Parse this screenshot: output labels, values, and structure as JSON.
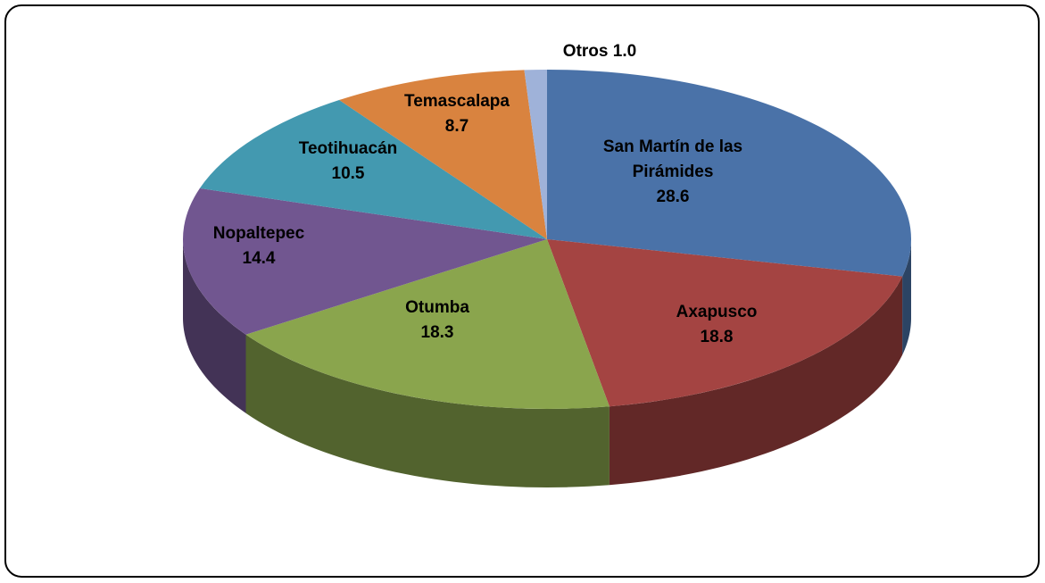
{
  "chart_data": {
    "type": "pie",
    "categories": [
      "San Martín de las Pirámides",
      "Axapusco",
      "Otumba",
      "Nopaltepec",
      "Teotihuacán",
      "Temascalapa",
      "Otros"
    ],
    "values": [
      28.6,
      18.8,
      18.3,
      14.4,
      10.5,
      8.7,
      1.0
    ],
    "value_labels": [
      "28.6",
      "18.8",
      "18.3",
      "14.4",
      "10.5",
      "8.7",
      "1.0"
    ],
    "colors": [
      "#4a72a8",
      "#a44442",
      "#8aa54d",
      "#715690",
      "#4399b0",
      "#d9833f",
      "#9fb2d9"
    ]
  }
}
